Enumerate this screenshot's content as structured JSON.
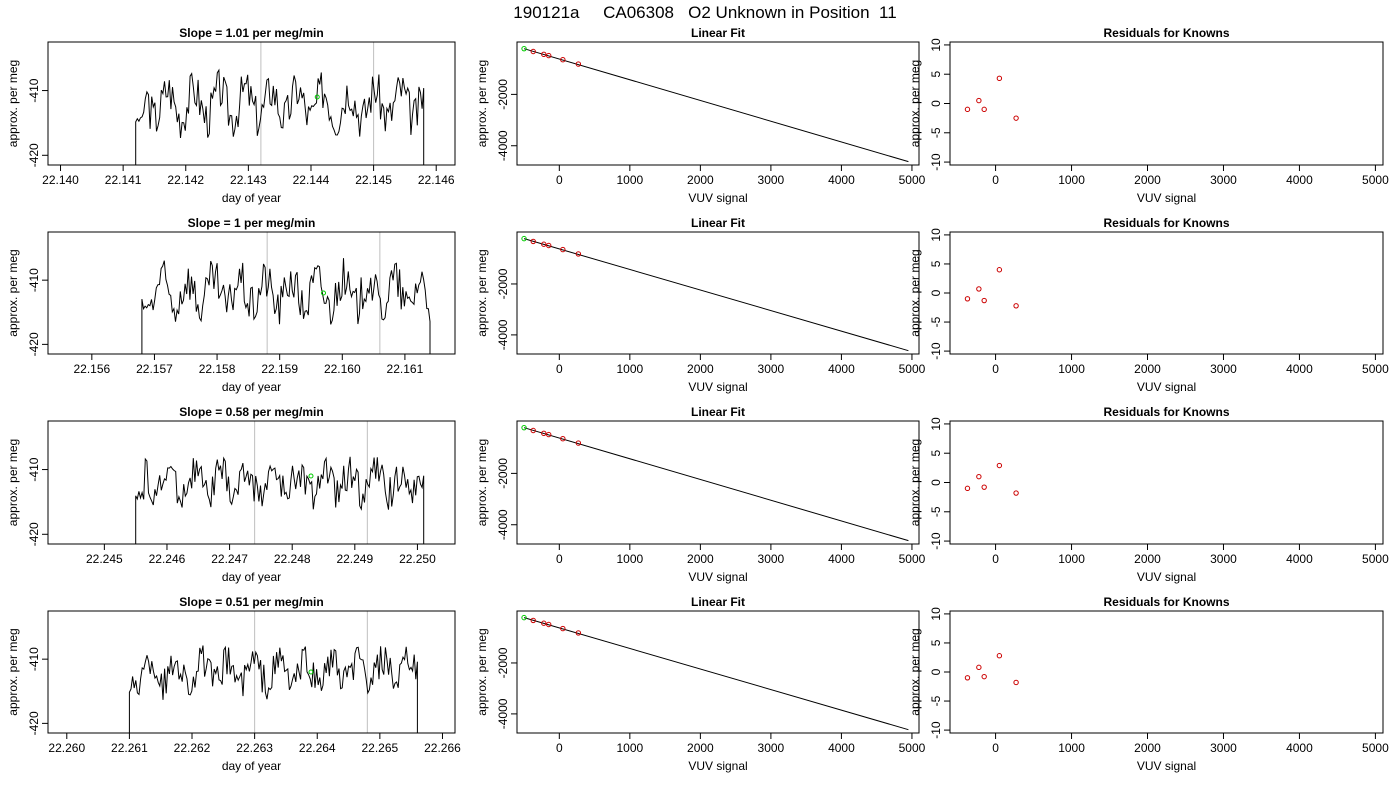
{
  "main_title": "190121a     CA06308   O2 Unknown in Position  11",
  "colors": {
    "trace": "#000000",
    "known_point": "#cc0000",
    "unknown_point": "#00cc00",
    "marker_line": "#bfbfbf"
  },
  "chart_data": [
    {
      "type": "line",
      "title": "Slope =  1.01  per meg/min",
      "xlabel": "day of year",
      "ylabel": "approx. per meg",
      "xlim": [
        22.1398,
        22.1463
      ],
      "ylim": [
        -421.5,
        -402.5
      ],
      "xticks": [
        "22.140",
        "22.141",
        "22.142",
        "22.143",
        "22.144",
        "22.145",
        "22.146"
      ],
      "yticks": [
        "-420",
        "-410"
      ],
      "vlines": [
        22.1432,
        22.145
      ],
      "trace_x_range": [
        22.1412,
        22.1458
      ],
      "trace_mean": -412,
      "trace_amplitude": 5,
      "unknown_point": {
        "x": 22.1441,
        "y": -411
      }
    },
    {
      "type": "scatter",
      "title": "Linear Fit",
      "xlabel": "VUV signal",
      "ylabel": "approx. per meg",
      "xlim": [
        -600,
        5100
      ],
      "ylim": [
        -4750,
        40
      ],
      "xticks": [
        "0",
        "1000",
        "2000",
        "3000",
        "4000",
        "5000"
      ],
      "yticks": [
        "-4000",
        "-2000"
      ],
      "fit_line": {
        "x": [
          -500,
          4950
        ],
        "y": [
          -220,
          -4620
        ]
      },
      "known_points": [
        {
          "x": -370,
          "y": -330
        },
        {
          "x": -220,
          "y": -440
        },
        {
          "x": -150,
          "y": -490
        },
        {
          "x": 50,
          "y": -650
        },
        {
          "x": 270,
          "y": -820
        }
      ],
      "unknown_point": {
        "x": -500,
        "y": -220
      }
    },
    {
      "type": "scatter",
      "title": "Residuals for Knowns",
      "xlabel": "VUV signal",
      "ylabel": "approx. per meg",
      "xlim": [
        -600,
        5100
      ],
      "ylim": [
        -10.5,
        10.5
      ],
      "xticks": [
        "0",
        "1000",
        "2000",
        "3000",
        "4000",
        "5000"
      ],
      "yticks": [
        "-10",
        "-5",
        "0",
        "5",
        "10"
      ],
      "points": [
        {
          "x": -370,
          "y": -1
        },
        {
          "x": -220,
          "y": 0.5
        },
        {
          "x": -150,
          "y": -1
        },
        {
          "x": 50,
          "y": 4.3
        },
        {
          "x": 270,
          "y": -2.5
        }
      ]
    },
    {
      "type": "line",
      "title": "Slope =  1  per meg/min",
      "xlabel": "day of year",
      "ylabel": "approx. per meg",
      "xlim": [
        22.1553,
        22.1618
      ],
      "ylim": [
        -421.5,
        -402.5
      ],
      "xticks": [
        "22.156",
        "22.157",
        "22.158",
        "22.159",
        "22.160",
        "22.161"
      ],
      "yticks": [
        "-420",
        "-410"
      ],
      "vlines": [
        22.1588,
        22.1606
      ],
      "trace_x_range": [
        22.1568,
        22.1614
      ],
      "trace_mean": -412,
      "trace_amplitude": 5,
      "unknown_point": {
        "x": 22.1597,
        "y": -412
      }
    },
    {
      "type": "scatter",
      "title": "Linear Fit",
      "xlabel": "VUV signal",
      "ylabel": "approx. per meg",
      "xlim": [
        -600,
        5100
      ],
      "ylim": [
        -4750,
        40
      ],
      "xticks": [
        "0",
        "1000",
        "2000",
        "3000",
        "4000",
        "5000"
      ],
      "yticks": [
        "-4000",
        "-2000"
      ],
      "fit_line": {
        "x": [
          -500,
          4950
        ],
        "y": [
          -220,
          -4620
        ]
      },
      "known_points": [
        {
          "x": -370,
          "y": -330
        },
        {
          "x": -220,
          "y": -440
        },
        {
          "x": -150,
          "y": -490
        },
        {
          "x": 50,
          "y": -650
        },
        {
          "x": 270,
          "y": -820
        }
      ],
      "unknown_point": {
        "x": -500,
        "y": -220
      }
    },
    {
      "type": "scatter",
      "title": "Residuals for Knowns",
      "xlabel": "VUV signal",
      "ylabel": "approx. per meg",
      "xlim": [
        -600,
        5100
      ],
      "ylim": [
        -10.5,
        10.5
      ],
      "xticks": [
        "0",
        "1000",
        "2000",
        "3000",
        "4000",
        "5000"
      ],
      "yticks": [
        "-10",
        "-5",
        "0",
        "5",
        "10"
      ],
      "points": [
        {
          "x": -370,
          "y": -1
        },
        {
          "x": -220,
          "y": 0.7
        },
        {
          "x": -150,
          "y": -1.3
        },
        {
          "x": 50,
          "y": 4
        },
        {
          "x": 270,
          "y": -2.2
        }
      ]
    },
    {
      "type": "line",
      "title": "Slope =  0.58  per meg/min",
      "xlabel": "day of year",
      "ylabel": "approx. per meg",
      "xlim": [
        22.2441,
        22.2506
      ],
      "ylim": [
        -421.5,
        -402.5
      ],
      "xticks": [
        "22.245",
        "22.246",
        "22.247",
        "22.248",
        "22.249",
        "22.250"
      ],
      "yticks": [
        "-420",
        "-410"
      ],
      "vlines": [
        22.2474,
        22.2492
      ],
      "trace_x_range": [
        22.2455,
        22.2501
      ],
      "trace_mean": -412,
      "trace_amplitude": 4,
      "unknown_point": {
        "x": 22.2483,
        "y": -411
      }
    },
    {
      "type": "scatter",
      "title": "Linear Fit",
      "xlabel": "VUV signal",
      "ylabel": "approx. per meg",
      "xlim": [
        -600,
        5100
      ],
      "ylim": [
        -4750,
        40
      ],
      "xticks": [
        "0",
        "1000",
        "2000",
        "3000",
        "4000",
        "5000"
      ],
      "yticks": [
        "-4000",
        "-2000"
      ],
      "fit_line": {
        "x": [
          -500,
          4950
        ],
        "y": [
          -220,
          -4620
        ]
      },
      "known_points": [
        {
          "x": -370,
          "y": -330
        },
        {
          "x": -220,
          "y": -440
        },
        {
          "x": -150,
          "y": -490
        },
        {
          "x": 50,
          "y": -650
        },
        {
          "x": 270,
          "y": -820
        }
      ],
      "unknown_point": {
        "x": -500,
        "y": -220
      }
    },
    {
      "type": "scatter",
      "title": "Residuals for Knowns",
      "xlabel": "VUV signal",
      "ylabel": "approx. per meg",
      "xlim": [
        -600,
        5100
      ],
      "ylim": [
        -10.5,
        10.5
      ],
      "xticks": [
        "0",
        "1000",
        "2000",
        "3000",
        "4000",
        "5000"
      ],
      "yticks": [
        "-10",
        "-5",
        "0",
        "5",
        "10"
      ],
      "points": [
        {
          "x": -370,
          "y": -1
        },
        {
          "x": -220,
          "y": 1
        },
        {
          "x": -150,
          "y": -0.8
        },
        {
          "x": 50,
          "y": 2.9
        },
        {
          "x": 270,
          "y": -1.8
        }
      ]
    },
    {
      "type": "line",
      "title": "Slope =  0.51  per meg/min",
      "xlabel": "day of year",
      "ylabel": "approx. per meg",
      "xlim": [
        22.2597,
        22.2662
      ],
      "ylim": [
        -421.5,
        -402.5
      ],
      "xticks": [
        "22.260",
        "22.261",
        "22.262",
        "22.263",
        "22.264",
        "22.265",
        "22.266"
      ],
      "yticks": [
        "-420",
        "-410"
      ],
      "vlines": [
        22.263,
        22.2648
      ],
      "trace_x_range": [
        22.261,
        22.2656
      ],
      "trace_mean": -412,
      "trace_amplitude": 4,
      "unknown_point": {
        "x": 22.2639,
        "y": -412
      }
    },
    {
      "type": "scatter",
      "title": "Linear Fit",
      "xlabel": "VUV signal",
      "ylabel": "approx. per meg",
      "xlim": [
        -600,
        5100
      ],
      "ylim": [
        -4750,
        40
      ],
      "xticks": [
        "0",
        "1000",
        "2000",
        "3000",
        "4000",
        "5000"
      ],
      "yticks": [
        "-4000",
        "-2000"
      ],
      "fit_line": {
        "x": [
          -500,
          4950
        ],
        "y": [
          -220,
          -4620
        ]
      },
      "known_points": [
        {
          "x": -370,
          "y": -330
        },
        {
          "x": -220,
          "y": -440
        },
        {
          "x": -150,
          "y": -490
        },
        {
          "x": 50,
          "y": -650
        },
        {
          "x": 270,
          "y": -820
        }
      ],
      "unknown_point": {
        "x": -500,
        "y": -220
      }
    },
    {
      "type": "scatter",
      "title": "Residuals for Knowns",
      "xlabel": "VUV signal",
      "ylabel": "approx. per meg",
      "xlim": [
        -600,
        5100
      ],
      "ylim": [
        -10.5,
        10.5
      ],
      "points": [
        {
          "x": -370,
          "y": -1
        },
        {
          "x": -220,
          "y": 0.8
        },
        {
          "x": -150,
          "y": -0.8
        },
        {
          "x": 50,
          "y": 2.8
        },
        {
          "x": 270,
          "y": -1.8
        }
      ],
      "xticks": [
        "0",
        "1000",
        "2000",
        "3000",
        "4000",
        "5000"
      ],
      "yticks": [
        "-10",
        "-5",
        "0",
        "5",
        "10"
      ]
    }
  ]
}
